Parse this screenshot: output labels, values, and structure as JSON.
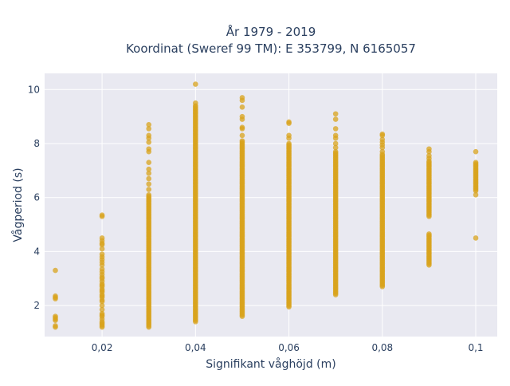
{
  "chart_data": {
    "type": "scatter",
    "title_lines": [
      "År 1979 - 2019",
      "Koordinat (Sweref 99 TM): E 353799, N 6165057"
    ],
    "xlabel": "Signifikant våghöjd (m)",
    "ylabel": "Vågperiod (s)",
    "xlim": [
      0.0077,
      0.1046
    ],
    "ylim": [
      0.85,
      10.6
    ],
    "x_ticks": [
      0.02,
      0.04,
      0.06,
      0.08,
      0.1
    ],
    "x_tick_labels": [
      "0,02",
      "0,04",
      "0,06",
      "0,08",
      "0,1"
    ],
    "y_ticks": [
      2,
      4,
      6,
      8,
      10
    ],
    "y_tick_labels": [
      "2",
      "4",
      "6",
      "8",
      "10"
    ],
    "grid": true,
    "background": "#e9e9f1",
    "marker_color": "#d8a31c",
    "series": [
      {
        "x_groups": [
          {
            "x": 0.01,
            "dense_range": null,
            "points": [
              1.2,
              1.25,
              1.45,
              1.5,
              1.55,
              1.6,
              2.25,
              2.3,
              2.35,
              3.3
            ]
          },
          {
            "x": 0.02,
            "dense_range": null,
            "points": [
              1.2,
              1.25,
              1.3,
              1.35,
              1.4,
              1.5,
              1.6,
              1.65,
              1.7,
              1.85,
              2.0,
              2.15,
              2.2,
              2.3,
              2.35,
              2.4,
              2.5,
              2.55,
              2.6,
              2.7,
              2.75,
              2.8,
              2.9,
              3.0,
              3.05,
              3.15,
              3.25,
              3.35,
              3.5,
              3.6,
              3.7,
              3.8,
              3.9,
              4.1,
              4.25,
              4.3,
              4.4,
              4.5,
              5.3,
              5.35
            ]
          },
          {
            "x": 0.03,
            "dense_range": [
              1.2,
              6.1
            ],
            "points": [
              6.3,
              6.5,
              6.7,
              6.9,
              7.05,
              7.3,
              7.7,
              7.8,
              8.05,
              8.2,
              8.3,
              8.55,
              8.7
            ]
          },
          {
            "x": 0.04,
            "dense_range": [
              1.4,
              9.4
            ],
            "points": [
              9.5,
              10.2
            ]
          },
          {
            "x": 0.05,
            "dense_range": [
              1.6,
              8.1
            ],
            "points": [
              8.3,
              8.55,
              8.6,
              8.9,
              9.0,
              9.35,
              9.6,
              9.7
            ]
          },
          {
            "x": 0.06,
            "dense_range": [
              1.95,
              8.0
            ],
            "points": [
              8.2,
              8.3,
              8.75,
              8.8
            ]
          },
          {
            "x": 0.07,
            "dense_range": [
              2.4,
              7.7
            ],
            "points": [
              7.85,
              8.0,
              8.2,
              8.3,
              8.55,
              8.9,
              9.1
            ]
          },
          {
            "x": 0.08,
            "dense_range": [
              2.7,
              7.6
            ],
            "points": [
              7.7,
              7.85,
              7.95,
              8.05,
              8.15,
              8.3,
              8.35
            ]
          },
          {
            "x": 0.09,
            "dense_range": [
              3.5,
              7.35
            ],
            "points": [
              7.45,
              7.55,
              7.7,
              7.8
            ],
            "gap": [
              4.65,
              5.25
            ]
          },
          {
            "x": 0.1,
            "dense_range": [
              6.25,
              7.3
            ],
            "points": [
              6.1,
              7.7,
              4.5
            ]
          }
        ]
      }
    ]
  }
}
